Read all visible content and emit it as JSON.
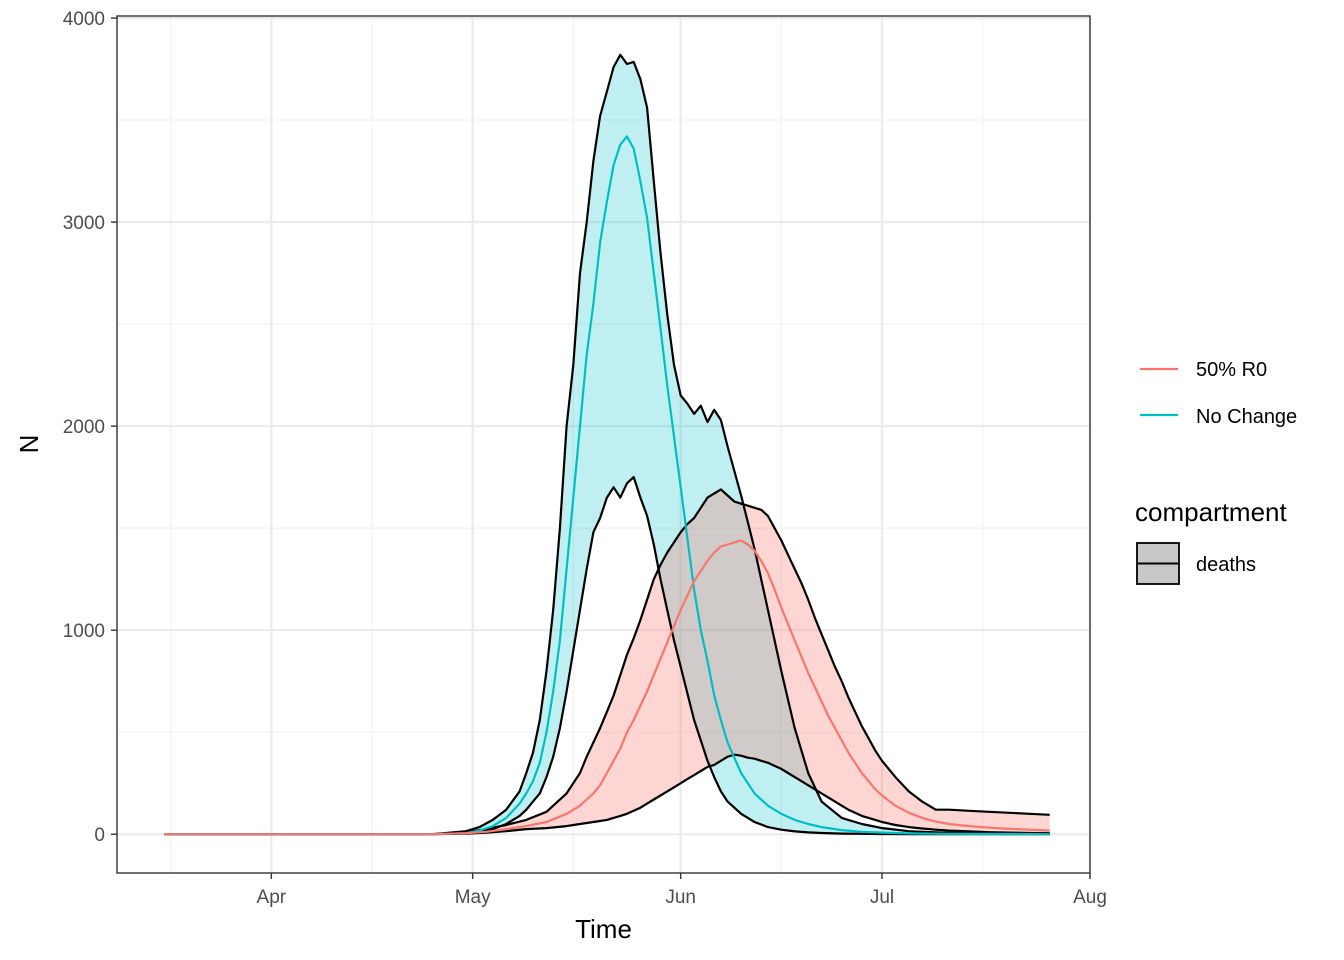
{
  "chart_data": {
    "type": "line",
    "title": "",
    "xlabel": "Time",
    "ylabel": "N",
    "x_range": [
      "2020-03-09",
      "2020-08-01"
    ],
    "ylim": [
      -190,
      4010
    ],
    "grid": true,
    "x_ticks": [
      {
        "date": "2020-04-01",
        "label": "Apr"
      },
      {
        "date": "2020-05-01",
        "label": "May"
      },
      {
        "date": "2020-06-01",
        "label": "Jun"
      },
      {
        "date": "2020-07-01",
        "label": "Jul"
      },
      {
        "date": "2020-08-01",
        "label": "Aug"
      }
    ],
    "y_ticks": [
      {
        "value": 0,
        "label": "0"
      },
      {
        "value": 1000,
        "label": "1000"
      },
      {
        "value": 2000,
        "label": "2000"
      },
      {
        "value": 3000,
        "label": "3000"
      },
      {
        "value": 4000,
        "label": "4000"
      }
    ],
    "legend": {
      "placement": "right",
      "color_items": [
        {
          "label": "50% R0",
          "color": "#F8766D"
        },
        {
          "label": "No Change",
          "color": "#00BFC4"
        }
      ],
      "fill_title": "compartment",
      "fill_items": [
        {
          "label": "deaths",
          "color": "#c8c8c8"
        }
      ]
    },
    "series": [
      {
        "name": "No Change",
        "color": "#00BFC4",
        "fill_opacity": 0.25,
        "points": [
          [
            "2020-03-16",
            0,
            0,
            0
          ],
          [
            "2020-04-01",
            0,
            0,
            0
          ],
          [
            "2020-04-15",
            0,
            0,
            0
          ],
          [
            "2020-04-25",
            0,
            0,
            0
          ],
          [
            "2020-04-30",
            5,
            5,
            15
          ],
          [
            "2020-05-02",
            12,
            18,
            35
          ],
          [
            "2020-05-04",
            25,
            40,
            70
          ],
          [
            "2020-05-06",
            50,
            80,
            120
          ],
          [
            "2020-05-08",
            90,
            150,
            210
          ],
          [
            "2020-05-09",
            120,
            200,
            300
          ],
          [
            "2020-05-10",
            160,
            260,
            400
          ],
          [
            "2020-05-11",
            200,
            350,
            560
          ],
          [
            "2020-05-12",
            280,
            500,
            800
          ],
          [
            "2020-05-13",
            380,
            700,
            1100
          ],
          [
            "2020-05-14",
            520,
            950,
            1500
          ],
          [
            "2020-05-15",
            700,
            1300,
            2000
          ],
          [
            "2020-05-16",
            900,
            1650,
            2300
          ],
          [
            "2020-05-17",
            1100,
            2000,
            2750
          ],
          [
            "2020-05-18",
            1300,
            2350,
            3000
          ],
          [
            "2020-05-19",
            1480,
            2600,
            3300
          ],
          [
            "2020-05-20",
            1550,
            2900,
            3520
          ],
          [
            "2020-05-21",
            1650,
            3100,
            3640
          ],
          [
            "2020-05-22",
            1700,
            3280,
            3760
          ],
          [
            "2020-05-23",
            1650,
            3380,
            3820
          ],
          [
            "2020-05-24",
            1720,
            3420,
            3775
          ],
          [
            "2020-05-25",
            1750,
            3360,
            3785
          ],
          [
            "2020-05-26",
            1650,
            3200,
            3700
          ],
          [
            "2020-05-27",
            1560,
            3020,
            3560
          ],
          [
            "2020-05-28",
            1420,
            2750,
            3200
          ],
          [
            "2020-05-29",
            1250,
            2480,
            2850
          ],
          [
            "2020-05-30",
            1100,
            2200,
            2550
          ],
          [
            "2020-05-31",
            950,
            1950,
            2300
          ],
          [
            "2020-06-01",
            820,
            1700,
            2150
          ],
          [
            "2020-06-02",
            690,
            1450,
            2110
          ],
          [
            "2020-06-03",
            560,
            1200,
            2060
          ],
          [
            "2020-06-04",
            460,
            1000,
            2100
          ],
          [
            "2020-06-05",
            360,
            850,
            2020
          ],
          [
            "2020-06-06",
            280,
            680,
            2080
          ],
          [
            "2020-06-07",
            210,
            560,
            2030
          ],
          [
            "2020-06-08",
            160,
            450,
            1900
          ],
          [
            "2020-06-10",
            100,
            300,
            1660
          ],
          [
            "2020-06-12",
            60,
            200,
            1400
          ],
          [
            "2020-06-14",
            35,
            140,
            1100
          ],
          [
            "2020-06-16",
            22,
            100,
            800
          ],
          [
            "2020-06-18",
            14,
            70,
            520
          ],
          [
            "2020-06-20",
            9,
            50,
            300
          ],
          [
            "2020-06-22",
            6,
            35,
            160
          ],
          [
            "2020-06-25",
            3,
            20,
            80
          ],
          [
            "2020-06-28",
            2,
            12,
            50
          ],
          [
            "2020-07-01",
            1,
            8,
            30
          ],
          [
            "2020-07-05",
            0,
            4,
            15
          ],
          [
            "2020-07-10",
            0,
            2,
            8
          ],
          [
            "2020-07-20",
            0,
            1,
            3
          ],
          [
            "2020-07-26",
            0,
            0,
            2
          ]
        ]
      },
      {
        "name": "50% R0",
        "color": "#F8766D",
        "fill_opacity": 0.3,
        "points": [
          [
            "2020-03-16",
            0,
            0,
            0
          ],
          [
            "2020-04-01",
            0,
            0,
            0
          ],
          [
            "2020-04-15",
            0,
            0,
            0
          ],
          [
            "2020-04-25",
            0,
            0,
            0
          ],
          [
            "2020-04-30",
            3,
            5,
            10
          ],
          [
            "2020-05-03",
            8,
            12,
            25
          ],
          [
            "2020-05-06",
            15,
            25,
            45
          ],
          [
            "2020-05-09",
            25,
            40,
            70
          ],
          [
            "2020-05-12",
            30,
            60,
            110
          ],
          [
            "2020-05-15",
            40,
            100,
            200
          ],
          [
            "2020-05-17",
            50,
            140,
            300
          ],
          [
            "2020-05-18",
            55,
            170,
            380
          ],
          [
            "2020-05-19",
            60,
            200,
            450
          ],
          [
            "2020-05-20",
            65,
            240,
            520
          ],
          [
            "2020-05-21",
            70,
            300,
            600
          ],
          [
            "2020-05-22",
            80,
            360,
            680
          ],
          [
            "2020-05-23",
            90,
            420,
            780
          ],
          [
            "2020-05-24",
            100,
            500,
            880
          ],
          [
            "2020-05-25",
            115,
            560,
            960
          ],
          [
            "2020-05-26",
            130,
            630,
            1050
          ],
          [
            "2020-05-27",
            150,
            700,
            1150
          ],
          [
            "2020-05-28",
            170,
            780,
            1250
          ],
          [
            "2020-05-29",
            190,
            860,
            1320
          ],
          [
            "2020-05-30",
            210,
            940,
            1380
          ],
          [
            "2020-05-31",
            230,
            1020,
            1430
          ],
          [
            "2020-06-01",
            250,
            1100,
            1480
          ],
          [
            "2020-06-02",
            270,
            1170,
            1520
          ],
          [
            "2020-06-03",
            290,
            1240,
            1550
          ],
          [
            "2020-06-04",
            310,
            1290,
            1600
          ],
          [
            "2020-06-05",
            330,
            1340,
            1650
          ],
          [
            "2020-06-06",
            340,
            1380,
            1670
          ],
          [
            "2020-06-07",
            360,
            1410,
            1690
          ],
          [
            "2020-06-08",
            380,
            1420,
            1660
          ],
          [
            "2020-06-09",
            390,
            1430,
            1630
          ],
          [
            "2020-06-10",
            385,
            1440,
            1620
          ],
          [
            "2020-06-11",
            375,
            1420,
            1610
          ],
          [
            "2020-06-12",
            370,
            1390,
            1600
          ],
          [
            "2020-06-13",
            360,
            1340,
            1590
          ],
          [
            "2020-06-14",
            350,
            1280,
            1560
          ],
          [
            "2020-06-15",
            335,
            1200,
            1500
          ],
          [
            "2020-06-16",
            320,
            1110,
            1440
          ],
          [
            "2020-06-17",
            300,
            1030,
            1370
          ],
          [
            "2020-06-18",
            280,
            950,
            1300
          ],
          [
            "2020-06-19",
            260,
            870,
            1230
          ],
          [
            "2020-06-20",
            240,
            790,
            1150
          ],
          [
            "2020-06-21",
            220,
            720,
            1060
          ],
          [
            "2020-06-22",
            200,
            650,
            980
          ],
          [
            "2020-06-23",
            180,
            580,
            900
          ],
          [
            "2020-06-24",
            160,
            520,
            820
          ],
          [
            "2020-06-25",
            140,
            460,
            750
          ],
          [
            "2020-06-26",
            120,
            400,
            670
          ],
          [
            "2020-06-27",
            105,
            350,
            600
          ],
          [
            "2020-06-28",
            90,
            300,
            530
          ],
          [
            "2020-06-29",
            80,
            260,
            470
          ],
          [
            "2020-06-30",
            70,
            220,
            410
          ],
          [
            "2020-07-01",
            60,
            190,
            360
          ],
          [
            "2020-07-03",
            45,
            140,
            280
          ],
          [
            "2020-07-05",
            35,
            105,
            210
          ],
          [
            "2020-07-07",
            28,
            80,
            160
          ],
          [
            "2020-07-09",
            22,
            62,
            120
          ],
          [
            "2020-07-11",
            18,
            50,
            120
          ],
          [
            "2020-07-14",
            14,
            40,
            115
          ],
          [
            "2020-07-17",
            10,
            32,
            110
          ],
          [
            "2020-07-20",
            8,
            26,
            105
          ],
          [
            "2020-07-23",
            6,
            22,
            100
          ],
          [
            "2020-07-26",
            5,
            18,
            95
          ]
        ]
      }
    ]
  }
}
